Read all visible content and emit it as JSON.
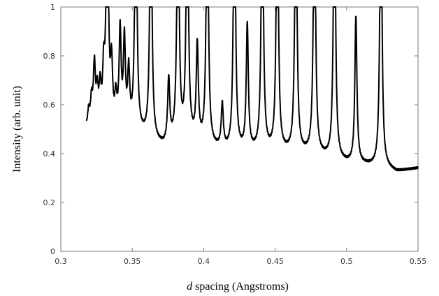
{
  "chart_data": {
    "type": "line",
    "title": "",
    "xlabel_italic": "d",
    "xlabel_rest": " spacing (Angstroms)",
    "ylabel": "Intensity (arb. unit)",
    "xlim": [
      0.3,
      0.55
    ],
    "ylim": [
      0,
      1
    ],
    "x_ticks": [
      0.3,
      0.35,
      0.4,
      0.45,
      0.5,
      0.55
    ],
    "x_tick_labels": [
      "0.3",
      "0.35",
      "0.4",
      "0.45",
      "0.5",
      "0.55"
    ],
    "y_ticks": [
      0,
      0.2,
      0.4,
      0.6,
      0.8,
      1
    ],
    "y_tick_labels": [
      "0",
      "0.2",
      "0.4",
      "0.6",
      "0.8",
      "1"
    ],
    "grid": false,
    "line_color": "#000000",
    "background": [
      [
        0.318,
        0.495
      ],
      [
        0.325,
        0.495
      ],
      [
        0.335,
        0.49
      ],
      [
        0.345,
        0.485
      ],
      [
        0.352,
        0.48
      ],
      [
        0.36,
        0.46
      ],
      [
        0.365,
        0.44
      ],
      [
        0.372,
        0.425
      ],
      [
        0.38,
        0.445
      ],
      [
        0.39,
        0.45
      ],
      [
        0.4,
        0.43
      ],
      [
        0.41,
        0.415
      ],
      [
        0.42,
        0.405
      ],
      [
        0.44,
        0.405
      ],
      [
        0.46,
        0.4
      ],
      [
        0.475,
        0.395
      ],
      [
        0.49,
        0.375
      ],
      [
        0.5,
        0.36
      ],
      [
        0.51,
        0.355
      ],
      [
        0.52,
        0.345
      ],
      [
        0.53,
        0.335
      ],
      [
        0.535,
        0.325
      ],
      [
        0.54,
        0.33
      ],
      [
        0.545,
        0.335
      ],
      [
        0.55,
        0.34
      ]
    ],
    "peaks": [
      {
        "x": 0.3195,
        "height": 0.56
      },
      {
        "x": 0.3215,
        "height": 0.6
      },
      {
        "x": 0.3235,
        "height": 0.74
      },
      {
        "x": 0.3255,
        "height": 0.62
      },
      {
        "x": 0.3275,
        "height": 0.64
      },
      {
        "x": 0.33,
        "height": 0.7
      },
      {
        "x": 0.3325,
        "height": 1.0
      },
      {
        "x": 0.3355,
        "height": 0.73
      },
      {
        "x": 0.3385,
        "height": 0.6
      },
      {
        "x": 0.3415,
        "height": 0.88
      },
      {
        "x": 0.3445,
        "height": 0.84
      },
      {
        "x": 0.3475,
        "height": 0.71
      },
      {
        "x": 0.3525,
        "height": 1.0
      },
      {
        "x": 0.363,
        "height": 1.0
      },
      {
        "x": 0.3755,
        "height": 0.69
      },
      {
        "x": 0.382,
        "height": 1.0
      },
      {
        "x": 0.3885,
        "height": 1.0
      },
      {
        "x": 0.3955,
        "height": 0.83
      },
      {
        "x": 0.4025,
        "height": 1.0
      },
      {
        "x": 0.413,
        "height": 0.59
      },
      {
        "x": 0.4215,
        "height": 1.0
      },
      {
        "x": 0.4305,
        "height": 0.92
      },
      {
        "x": 0.441,
        "height": 1.0
      },
      {
        "x": 0.4515,
        "height": 1.0
      },
      {
        "x": 0.4645,
        "height": 1.0
      },
      {
        "x": 0.4775,
        "height": 1.0
      },
      {
        "x": 0.4915,
        "height": 1.0
      },
      {
        "x": 0.5065,
        "height": 0.96
      },
      {
        "x": 0.524,
        "height": 1.0
      }
    ]
  }
}
